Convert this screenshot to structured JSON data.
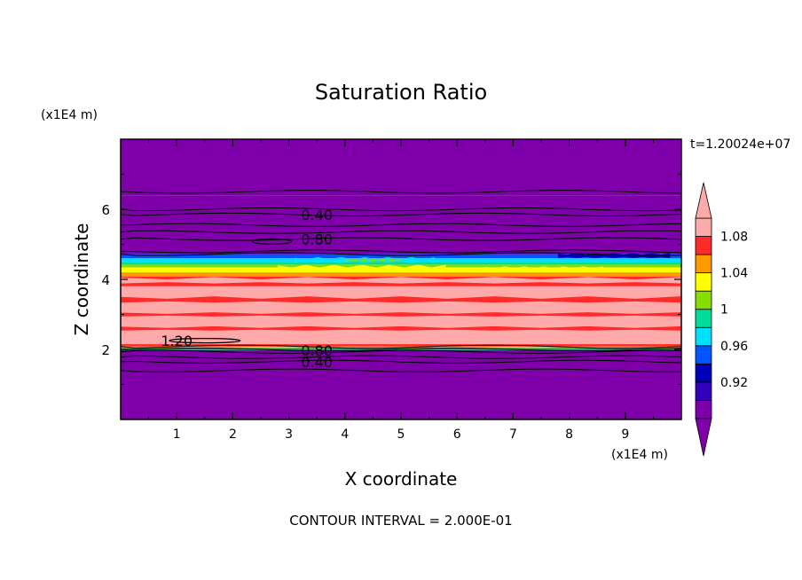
{
  "chart_data": {
    "type": "contour",
    "title": "Saturation Ratio",
    "time_label": "t=1.20024e+07",
    "xlabel": "X coordinate",
    "ylabel": "Z coordinate",
    "x_unit": "(x1E4 m)",
    "y_unit": "(x1E4 m)",
    "footer": "CONTOUR INTERVAL = 2.000E-01",
    "xlim": [
      0,
      10
    ],
    "ylim": [
      0,
      8
    ],
    "x_ticks": [
      1,
      2,
      3,
      4,
      5,
      6,
      7,
      8,
      9
    ],
    "y_ticks": [
      2,
      4,
      6
    ],
    "contour_labels": [
      {
        "text": "0.40",
        "x": 3.5,
        "z": 5.85
      },
      {
        "text": "0.80",
        "x": 3.5,
        "z": 5.15
      },
      {
        "text": "1.20",
        "x": 1.0,
        "z": 2.25
      },
      {
        "text": "0.80",
        "x": 3.5,
        "z": 1.98
      },
      {
        "text": "0.40",
        "x": 3.5,
        "z": 1.65
      }
    ],
    "bands": [
      {
        "z0": 6.4,
        "z1": 8.0,
        "color": "#7f00aa"
      },
      {
        "z0": 4.72,
        "z1": 6.4,
        "color": "#7f00aa"
      },
      {
        "z0": 4.6,
        "z1": 4.72,
        "color": "#0055ff"
      },
      {
        "z0": 4.5,
        "z1": 4.6,
        "color": "#00e0ff"
      },
      {
        "z0": 4.42,
        "z1": 4.5,
        "color": "#00dd99"
      },
      {
        "z0": 4.34,
        "z1": 4.42,
        "color": "#88dd00"
      },
      {
        "z0": 4.2,
        "z1": 4.34,
        "color": "#ffff00"
      },
      {
        "z0": 4.08,
        "z1": 4.2,
        "color": "#ff9900"
      },
      {
        "z0": 3.8,
        "z1": 4.08,
        "color": "#ff2a2a"
      },
      {
        "z0": 2.15,
        "z1": 3.8,
        "color": "#ffaaaa"
      },
      {
        "z0": 2.08,
        "z1": 2.15,
        "color": "#ff2a2a"
      },
      {
        "z0": 2.04,
        "z1": 2.08,
        "color": "#ffcc00"
      },
      {
        "z0": 1.98,
        "z1": 2.04,
        "color": "#00aa66"
      },
      {
        "z0": 0.0,
        "z1": 1.98,
        "color": "#7f00aa"
      }
    ],
    "patches": [
      {
        "x0": 0.0,
        "x1": 10.0,
        "z0": 3.9,
        "z1": 4.05,
        "color": "#ffaaaa"
      },
      {
        "x0": 0.0,
        "x1": 10.0,
        "z0": 3.35,
        "z1": 3.5,
        "color": "#ff2a2a"
      },
      {
        "x0": 0.0,
        "x1": 10.0,
        "z0": 2.95,
        "z1": 3.05,
        "color": "#ff2a2a"
      },
      {
        "x0": 0.0,
        "x1": 10.0,
        "z0": 2.55,
        "z1": 2.65,
        "color": "#ff2a2a"
      },
      {
        "x0": 2.8,
        "x1": 5.8,
        "z0": 4.22,
        "z1": 4.4,
        "color": "#ffff00"
      },
      {
        "x0": 6.5,
        "x1": 8.6,
        "z0": 4.22,
        "z1": 4.36,
        "color": "#ffff00"
      },
      {
        "x0": 3.1,
        "x1": 5.6,
        "z0": 4.48,
        "z1": 4.62,
        "color": "#00e0ff"
      },
      {
        "x0": 7.8,
        "x1": 9.8,
        "z0": 4.62,
        "z1": 4.74,
        "color": "#0000bb"
      },
      {
        "x0": 4.0,
        "x1": 5.0,
        "z0": 4.52,
        "z1": 4.58,
        "color": "#88dd00"
      }
    ],
    "contour_lines_z": [
      6.5,
      6.0,
      5.85,
      5.55,
      5.35,
      5.15,
      4.8,
      4.72,
      2.08,
      2.0,
      1.93,
      1.78,
      1.65,
      1.4
    ],
    "colorbar": {
      "levels": [
        {
          "color": "#7f00aa",
          "label": ""
        },
        {
          "color": "#3300bb",
          "label": "0.92"
        },
        {
          "color": "#0000bb",
          "label": ""
        },
        {
          "color": "#0055ff",
          "label": "0.96"
        },
        {
          "color": "#00e0ff",
          "label": ""
        },
        {
          "color": "#00dd99",
          "label": "1"
        },
        {
          "color": "#88dd00",
          "label": ""
        },
        {
          "color": "#ffff00",
          "label": "1.04"
        },
        {
          "color": "#ff9900",
          "label": ""
        },
        {
          "color": "#ff2a2a",
          "label": "1.08"
        },
        {
          "color": "#ffaaaa",
          "label": ""
        }
      ],
      "top_color": "#ffaaaa",
      "bottom_color": "#7f00aa"
    }
  }
}
